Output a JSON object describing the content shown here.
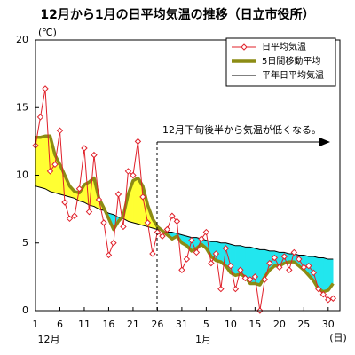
{
  "chart_data": {
    "type": "line",
    "title": "12月から1月の日平均気温の推移（日立市役所）",
    "y_unit": "(℃)",
    "x_unit": "(日)",
    "month_labels": [
      "12月",
      "1月"
    ],
    "annotation": "12月下旬後半から気温が低くなる。",
    "x": [
      1,
      2,
      3,
      4,
      5,
      6,
      7,
      8,
      9,
      10,
      11,
      12,
      13,
      14,
      15,
      16,
      17,
      18,
      19,
      20,
      21,
      22,
      23,
      24,
      25,
      26,
      27,
      28,
      29,
      30,
      31,
      32,
      33,
      34,
      35,
      36,
      37,
      38,
      39,
      40,
      41,
      42,
      43,
      44,
      45,
      46,
      47,
      48,
      49,
      50,
      51,
      52,
      53,
      54,
      55,
      56,
      57,
      58,
      59,
      60,
      61,
      62
    ],
    "series": [
      {
        "name": "日平均気温",
        "color": "#e0202a",
        "values": [
          12.2,
          14.3,
          16.4,
          10.3,
          10.8,
          13.3,
          8.0,
          6.8,
          7.0,
          9.0,
          12.0,
          7.3,
          11.5,
          8.2,
          6.5,
          4.1,
          5.0,
          8.6,
          6.2,
          10.3,
          10.0,
          12.5,
          8.4,
          6.5,
          4.2,
          5.8,
          5.5,
          6.0,
          7.0,
          6.6,
          3.0,
          3.8,
          5.2,
          4.3,
          5.3,
          5.8,
          3.5,
          4.2,
          1.6,
          4.6,
          3.3,
          1.6,
          3.0,
          2.4,
          2.3,
          2.5,
          0.0,
          2.3,
          3.5,
          3.9,
          3.2,
          4.0,
          3.0,
          4.3,
          3.8,
          3.2,
          3.3,
          2.8,
          1.6,
          1.2,
          0.8,
          0.9
        ]
      },
      {
        "name": "5日間移動平均",
        "color": "#8c8c14",
        "values": [
          12.8,
          12.8,
          12.9,
          12.9,
          11.5,
          10.8,
          10.0,
          9.2,
          8.8,
          8.7,
          9.3,
          9.5,
          9.8,
          8.3,
          7.6,
          6.8,
          6.0,
          6.6,
          7.0,
          8.6,
          9.6,
          9.8,
          9.2,
          7.8,
          6.8,
          6.2,
          5.9,
          5.6,
          5.3,
          5.5,
          5.0,
          4.8,
          4.4,
          4.6,
          4.9,
          4.6,
          4.0,
          3.7,
          3.6,
          3.3,
          2.8,
          2.6,
          2.7,
          2.5,
          2.0,
          2.0,
          1.9,
          2.5,
          3.0,
          3.3,
          3.3,
          3.5,
          3.6,
          3.6,
          3.3,
          3.0,
          2.6,
          2.2,
          1.6,
          1.4,
          1.5,
          2.0
        ]
      },
      {
        "name": "平年日平均気温",
        "color": "#000000",
        "values": [
          9.2,
          9.1,
          9.0,
          8.8,
          8.7,
          8.6,
          8.5,
          8.4,
          8.3,
          8.1,
          8.0,
          7.8,
          7.7,
          7.5,
          7.4,
          7.2,
          7.1,
          6.9,
          6.8,
          6.6,
          6.5,
          6.4,
          6.3,
          6.2,
          6.1,
          6.0,
          5.9,
          5.8,
          5.8,
          5.7,
          5.6,
          5.5,
          5.4,
          5.4,
          5.3,
          5.2,
          5.1,
          5.1,
          5.0,
          5.0,
          4.9,
          4.8,
          4.8,
          4.7,
          4.7,
          4.6,
          4.5,
          4.5,
          4.4,
          4.4,
          4.3,
          4.3,
          4.2,
          4.2,
          4.1,
          4.1,
          4.0,
          4.0,
          3.9,
          3.9,
          3.8,
          3.8
        ]
      }
    ],
    "fill_above": "#ffff33",
    "fill_below": "#22e6ee",
    "xlim": [
      1,
      63.4
    ],
    "xticks": [
      1,
      6,
      11,
      16,
      21,
      26,
      31,
      {
        "value": 36,
        "label": "5"
      },
      {
        "value": 41,
        "label": "10"
      },
      {
        "value": 46,
        "label": "15"
      },
      {
        "value": 51,
        "label": "20"
      },
      {
        "value": 56,
        "label": "25"
      },
      {
        "value": 61,
        "label": "30"
      }
    ],
    "ylim": [
      0,
      20
    ],
    "yticks": [
      0,
      5,
      10,
      15,
      20
    ],
    "legend": "upper right"
  }
}
